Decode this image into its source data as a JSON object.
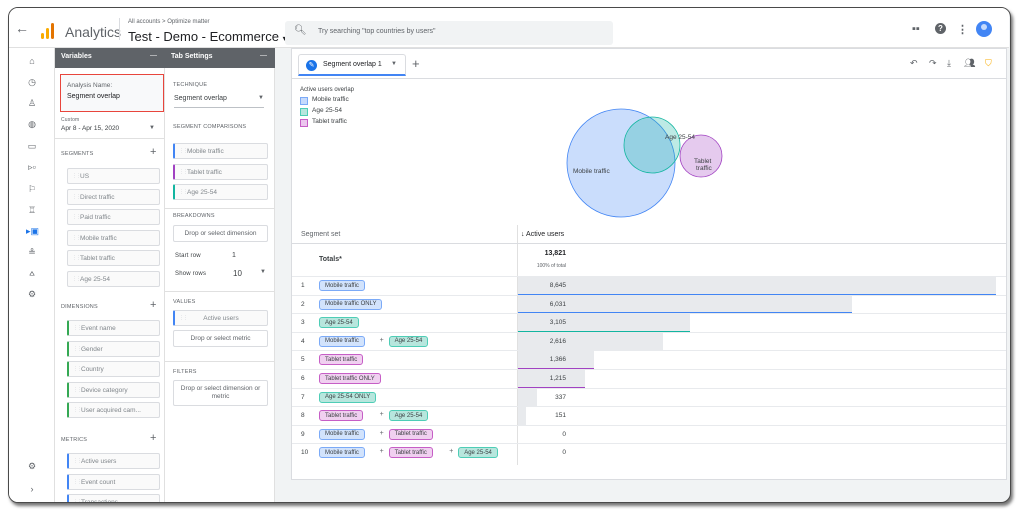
{
  "header": {
    "app_name": "Analytics",
    "breadcrumb": "All accounts > Optimize matter",
    "property": "Test - Demo - Ecommerce",
    "search_placeholder": "Try searching \"top countries by users\""
  },
  "variables": {
    "title": "Variables",
    "analysis_name_label": "Analysis Name:",
    "analysis_name": "Segment overlap",
    "date_custom": "Custom",
    "date_range": "Apr 8 - Apr 15, 2020",
    "segments_label": "SEGMENTS",
    "segments": [
      "US",
      "Direct traffic",
      "Paid traffic",
      "Mobile traffic",
      "Tablet traffic",
      "Age 25-54"
    ],
    "dimensions_label": "DIMENSIONS",
    "dimensions": [
      "Event name",
      "Gender",
      "Country",
      "Device category",
      "User acquired cam..."
    ],
    "metrics_label": "METRICS",
    "metrics": [
      "Active users",
      "Event count",
      "Transactions"
    ]
  },
  "tab_settings": {
    "title": "Tab Settings",
    "technique_label": "TECHNIQUE",
    "technique": "Segment overlap",
    "segment_comparisons_label": "SEGMENT COMPARISONS",
    "segment_comparisons": [
      "Mobile traffic",
      "Tablet traffic",
      "Age 25-54"
    ],
    "breakdowns_label": "BREAKDOWNS",
    "breakdowns_drop": "Drop or select dimension",
    "start_row_label": "Start row",
    "start_row": "1",
    "show_rows_label": "Show rows",
    "show_rows": "10",
    "values_label": "VALUES",
    "values_item": "Active users",
    "values_drop": "Drop or select metric",
    "filters_label": "FILTERS",
    "filters_drop": "Drop or select dimension or metric"
  },
  "canvas": {
    "tab_label": "Segment overlap 1",
    "legend_title": "Active users overlap",
    "legend": [
      "Mobile traffic",
      "Age 25-54",
      "Tablet traffic"
    ],
    "venn_labels": [
      "Mobile traffic",
      "Age 25-54",
      "Tablet traffic"
    ],
    "table": {
      "col_segment": "Segment set",
      "col_metric": "↓ Active users",
      "totals_label": "Totals*",
      "totals_value": "13,821",
      "totals_sub": "100% of total",
      "rows": [
        {
          "n": "1",
          "segs": [
            "Mobile traffic"
          ],
          "value": "8,645",
          "frac": 1.0
        },
        {
          "n": "2",
          "segs": [
            "Mobile traffic ONLY"
          ],
          "value": "6,031",
          "frac": 0.698
        },
        {
          "n": "3",
          "segs": [
            "Age 25-54"
          ],
          "value": "3,105",
          "frac": 0.359
        },
        {
          "n": "4",
          "segs": [
            "Mobile traffic",
            "Age 25-54"
          ],
          "value": "2,616",
          "frac": 0.303
        },
        {
          "n": "5",
          "segs": [
            "Tablet traffic"
          ],
          "value": "1,366",
          "frac": 0.158
        },
        {
          "n": "6",
          "segs": [
            "Tablet traffic ONLY"
          ],
          "value": "1,215",
          "frac": 0.141
        },
        {
          "n": "7",
          "segs": [
            "Age 25-54 ONLY"
          ],
          "value": "337",
          "frac": 0.039
        },
        {
          "n": "8",
          "segs": [
            "Tablet traffic",
            "Age 25-54"
          ],
          "value": "151",
          "frac": 0.017
        },
        {
          "n": "9",
          "segs": [
            "Mobile traffic",
            "Tablet traffic"
          ],
          "value": "0",
          "frac": 0
        },
        {
          "n": "10",
          "segs": [
            "Mobile traffic",
            "Tablet traffic",
            "Age 25-54"
          ],
          "value": "0",
          "frac": 0
        }
      ]
    }
  },
  "colors": {
    "mobile": "#4285f4",
    "age": "#12b5a0",
    "tablet": "#a142c2",
    "highlight": "#e8453c"
  }
}
